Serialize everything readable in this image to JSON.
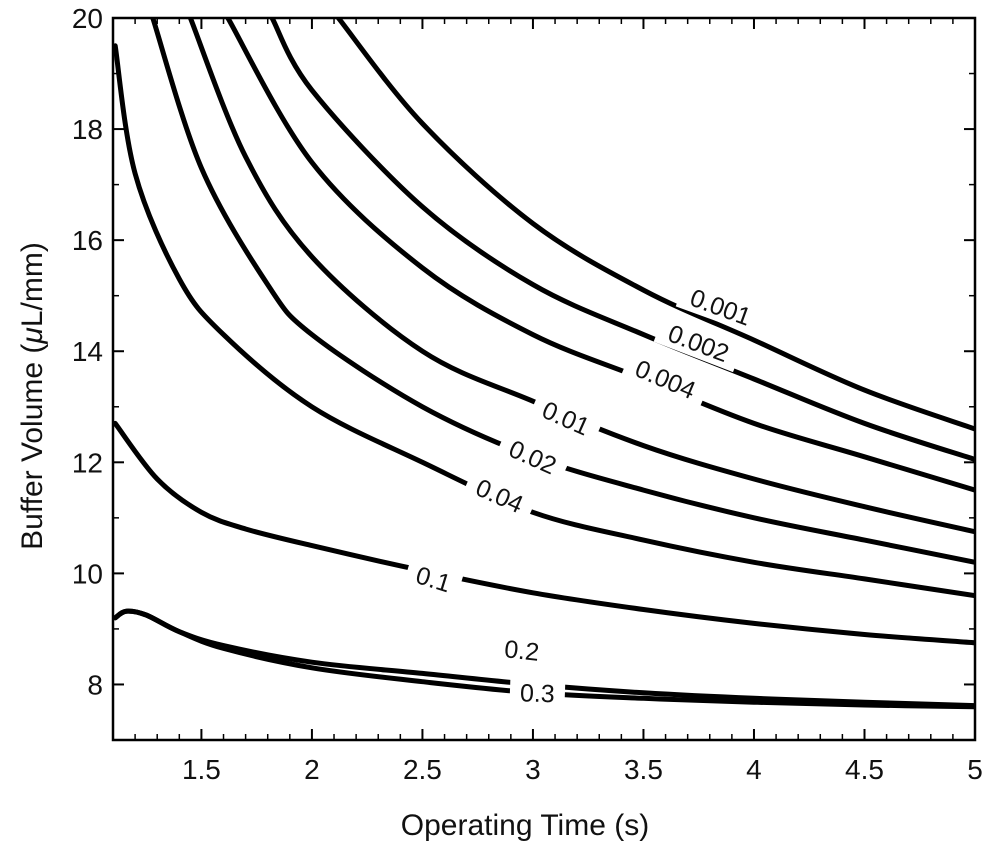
{
  "chart_data": {
    "type": "contour",
    "title": "",
    "xlabel": "Operating Time (s)",
    "ylabel_prefix": "Buffer Volume (",
    "ylabel_mu": "μ",
    "ylabel_suffix": "L/mm)",
    "xlim": [
      1.1,
      5
    ],
    "ylim": [
      7,
      20
    ],
    "x_ticks": [
      1.5,
      2,
      2.5,
      3,
      3.5,
      4,
      4.5,
      5
    ],
    "x_tick_labels": [
      "1.5",
      "2",
      "2.5",
      "3",
      "3.5",
      "4",
      "4.5",
      "5"
    ],
    "y_ticks": [
      8,
      10,
      12,
      14,
      16,
      18,
      20
    ],
    "y_tick_labels": [
      "8",
      "10",
      "12",
      "14",
      "16",
      "18",
      "20"
    ],
    "grid": false,
    "series": [
      {
        "name": "0.001",
        "label_at": [
          3.85,
          14.8
        ],
        "label_angle": 20,
        "points": [
          [
            2.12,
            20
          ],
          [
            2.5,
            18.1
          ],
          [
            3,
            16.3
          ],
          [
            3.5,
            15.1
          ],
          [
            4,
            14.2
          ],
          [
            4.5,
            13.3
          ],
          [
            5,
            12.6
          ]
        ]
      },
      {
        "name": "0.002",
        "label_at": [
          3.75,
          14.15
        ],
        "label_angle": 21,
        "points": [
          [
            1.82,
            20
          ],
          [
            2,
            18.7
          ],
          [
            2.5,
            16.6
          ],
          [
            3,
            15.2
          ],
          [
            3.5,
            14.3
          ],
          [
            4,
            13.5
          ],
          [
            4.5,
            12.7
          ],
          [
            5,
            12.05
          ]
        ]
      },
      {
        "name": "0.004",
        "label_at": [
          3.6,
          13.5
        ],
        "label_angle": 23,
        "points": [
          [
            1.62,
            20
          ],
          [
            2,
            17.4
          ],
          [
            2.5,
            15.5
          ],
          [
            3,
            14.3
          ],
          [
            3.5,
            13.5
          ],
          [
            4,
            12.7
          ],
          [
            4.5,
            12.1
          ],
          [
            5,
            11.5
          ]
        ]
      },
      {
        "name": "0.01",
        "label_at": [
          3.15,
          12.8
        ],
        "label_angle": 24,
        "points": [
          [
            1.45,
            20
          ],
          [
            1.7,
            17.5
          ],
          [
            2,
            15.7
          ],
          [
            2.5,
            14
          ],
          [
            3,
            13.1
          ],
          [
            3.5,
            12.3
          ],
          [
            4,
            11.7
          ],
          [
            4.5,
            11.2
          ],
          [
            5,
            10.75
          ]
        ]
      },
      {
        "name": "0.02",
        "label_at": [
          3.0,
          12.1
        ],
        "label_angle": 24,
        "points": [
          [
            1.28,
            20
          ],
          [
            1.5,
            17.3
          ],
          [
            1.8,
            15.2
          ],
          [
            2,
            14.3
          ],
          [
            2.5,
            13
          ],
          [
            3,
            12.1
          ],
          [
            3.5,
            11.5
          ],
          [
            4,
            11
          ],
          [
            4.5,
            10.6
          ],
          [
            5,
            10.2
          ]
        ]
      },
      {
        "name": "0.04",
        "label_at": [
          2.85,
          11.4
        ],
        "label_angle": 24,
        "points": [
          [
            1.11,
            19.5
          ],
          [
            1.2,
            17.2
          ],
          [
            1.4,
            15.3
          ],
          [
            1.6,
            14.3
          ],
          [
            2,
            13
          ],
          [
            2.5,
            12
          ],
          [
            3,
            11.1
          ],
          [
            3.5,
            10.6
          ],
          [
            4,
            10.2
          ],
          [
            4.5,
            9.9
          ],
          [
            5,
            9.6
          ]
        ]
      },
      {
        "name": "0.1",
        "label_at": [
          2.55,
          9.9
        ],
        "label_angle": 17,
        "points": [
          [
            1.11,
            12.7
          ],
          [
            1.3,
            11.7
          ],
          [
            1.5,
            11.1
          ],
          [
            1.7,
            10.8
          ],
          [
            2,
            10.5
          ],
          [
            2.5,
            10.05
          ],
          [
            3,
            9.65
          ],
          [
            3.5,
            9.35
          ],
          [
            4,
            9.1
          ],
          [
            4.5,
            8.9
          ],
          [
            5,
            8.75
          ]
        ]
      },
      {
        "name": "0.2",
        "label_at": [
          2.95,
          8.62
        ],
        "label_angle": 6,
        "points": [
          [
            1.11,
            9.2
          ],
          [
            1.16,
            9.32
          ],
          [
            1.25,
            9.25
          ],
          [
            1.4,
            8.95
          ],
          [
            1.6,
            8.7
          ],
          [
            2,
            8.4
          ],
          [
            2.5,
            8.2
          ],
          [
            3,
            8.0
          ],
          [
            3.5,
            7.85
          ],
          [
            4,
            7.75
          ],
          [
            4.5,
            7.68
          ],
          [
            5,
            7.62
          ]
        ]
      },
      {
        "name": "0.3",
        "label_at": [
          3.02,
          7.85
        ],
        "label_angle": 2,
        "points": [
          [
            1.11,
            9.2
          ],
          [
            1.16,
            9.32
          ],
          [
            1.25,
            9.25
          ],
          [
            1.4,
            8.95
          ],
          [
            1.6,
            8.65
          ],
          [
            2,
            8.3
          ],
          [
            2.5,
            8.05
          ],
          [
            3,
            7.85
          ],
          [
            3.5,
            7.75
          ],
          [
            4,
            7.68
          ],
          [
            4.5,
            7.63
          ],
          [
            5,
            7.6
          ]
        ]
      }
    ]
  }
}
